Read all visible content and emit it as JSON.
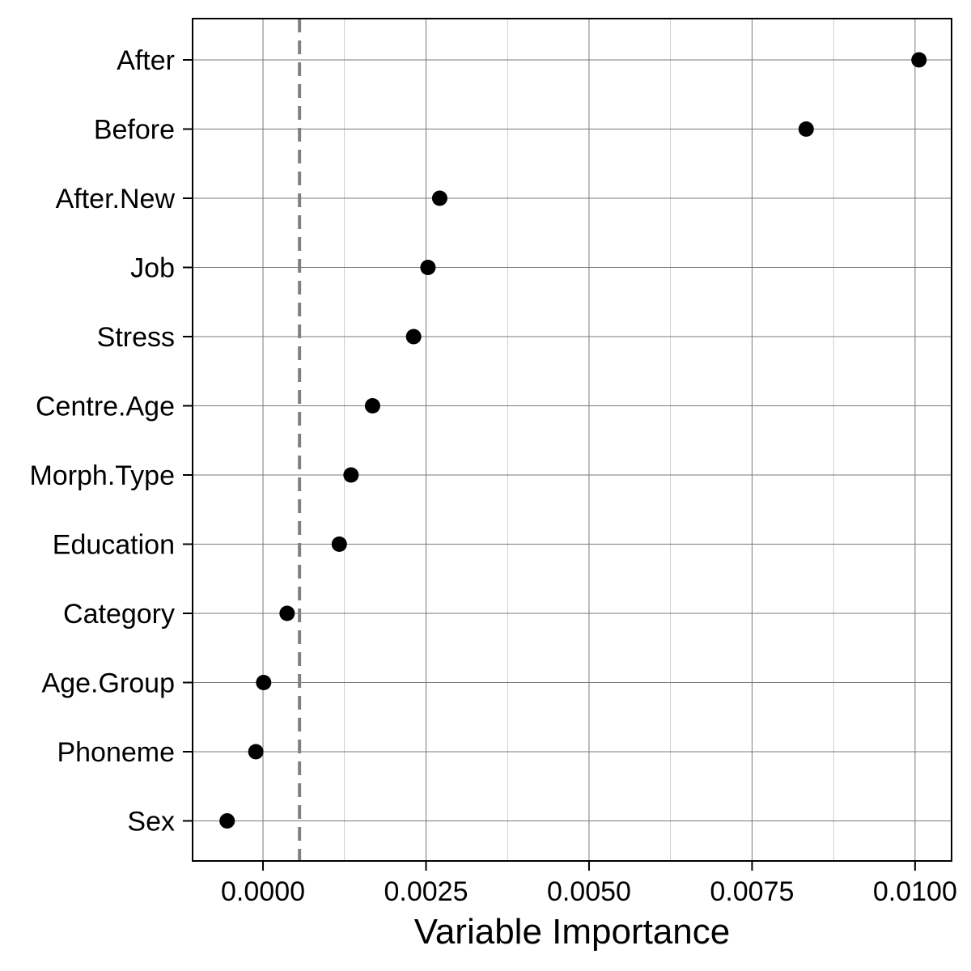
{
  "chart_data": {
    "type": "scatter",
    "xlabel": "Variable Importance",
    "ylabel": "",
    "xlim": [
      -0.00108,
      0.01056
    ],
    "x_ticks": [
      0.0,
      0.0025,
      0.005,
      0.0075,
      0.01
    ],
    "x_tick_labels": [
      "0.0000",
      "0.0025",
      "0.0050",
      "0.0075",
      "0.0100"
    ],
    "categories": [
      "After",
      "Before",
      "After.New",
      "Job",
      "Stress",
      "Centre.Age",
      "Morph.Type",
      "Education",
      "Category",
      "Age.Group",
      "Phoneme",
      "Sex"
    ],
    "values": [
      0.01006,
      0.00833,
      0.00271,
      0.00253,
      0.00231,
      0.00168,
      0.00135,
      0.00117,
      0.00037,
      1e-05,
      -0.00011,
      -0.00055
    ],
    "reference_line": 0.00056,
    "grid": true,
    "colors": {
      "points": "#000000",
      "reference_line": "#808080",
      "grid": "#7a7a7a",
      "frame": "#000000"
    }
  }
}
